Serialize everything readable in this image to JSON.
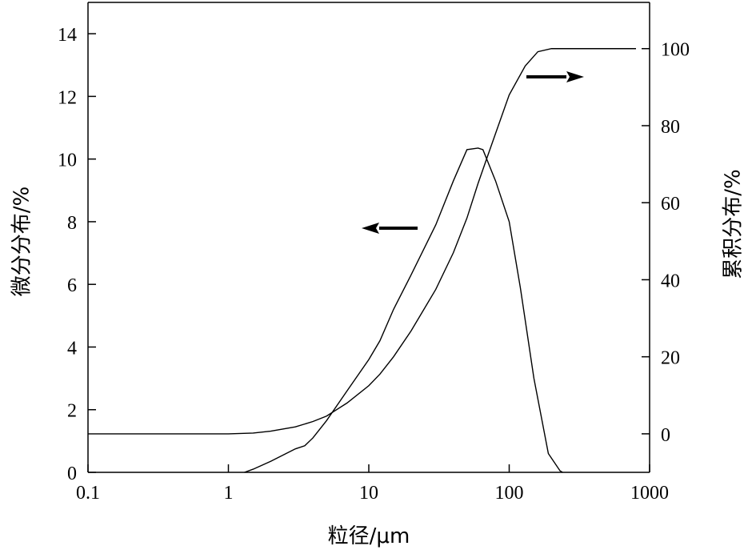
{
  "chart_data": {
    "type": "line",
    "xlabel": "粒径/μm",
    "ylabel_left": "微分分布/%",
    "ylabel_right": "累积分布/%",
    "x_scale": "log",
    "xlim": [
      0.1,
      1000
    ],
    "ylim_left": [
      0,
      15
    ],
    "ylim_right": [
      -10,
      112
    ],
    "x_ticks": [
      "0.1",
      "1",
      "10",
      "100",
      "1000"
    ],
    "y_left_ticks": [
      "0",
      "2",
      "4",
      "6",
      "8",
      "10",
      "12",
      "14"
    ],
    "y_right_ticks": [
      "0",
      "20",
      "40",
      "60",
      "80",
      "100"
    ],
    "grid": false,
    "legend": "none",
    "series": [
      {
        "axis": "left",
        "x": [
          1.3,
          1.5,
          2,
          3,
          3.5,
          4,
          5,
          7,
          10,
          12,
          15,
          20,
          30,
          40,
          50,
          60,
          65,
          80,
          100,
          120,
          150,
          190,
          230,
          240
        ],
        "values": [
          0,
          0.1,
          0.35,
          0.75,
          0.85,
          1.1,
          1.65,
          2.6,
          3.6,
          4.2,
          5.2,
          6.3,
          7.9,
          9.3,
          10.3,
          10.35,
          10.3,
          9.3,
          8.0,
          5.9,
          3.0,
          0.6,
          0.05,
          0
        ]
      },
      {
        "axis": "right",
        "x": [
          0.1,
          0.5,
          1,
          1.5,
          2,
          3,
          4,
          5,
          7,
          10,
          12,
          15,
          20,
          30,
          40,
          50,
          60,
          70,
          80,
          100,
          130,
          160,
          200,
          400,
          800
        ],
        "values": [
          0,
          0,
          0,
          0.2,
          0.7,
          1.8,
          3.2,
          4.6,
          8,
          12.5,
          15.5,
          20,
          26.7,
          37.5,
          47,
          56,
          65,
          72,
          78,
          88,
          95.5,
          99.2,
          100,
          100,
          100
        ]
      }
    ],
    "annotations": [
      {
        "type": "arrow",
        "direction": "left",
        "points_to": "left-axis"
      },
      {
        "type": "arrow",
        "direction": "right",
        "points_to": "right-axis"
      }
    ]
  }
}
